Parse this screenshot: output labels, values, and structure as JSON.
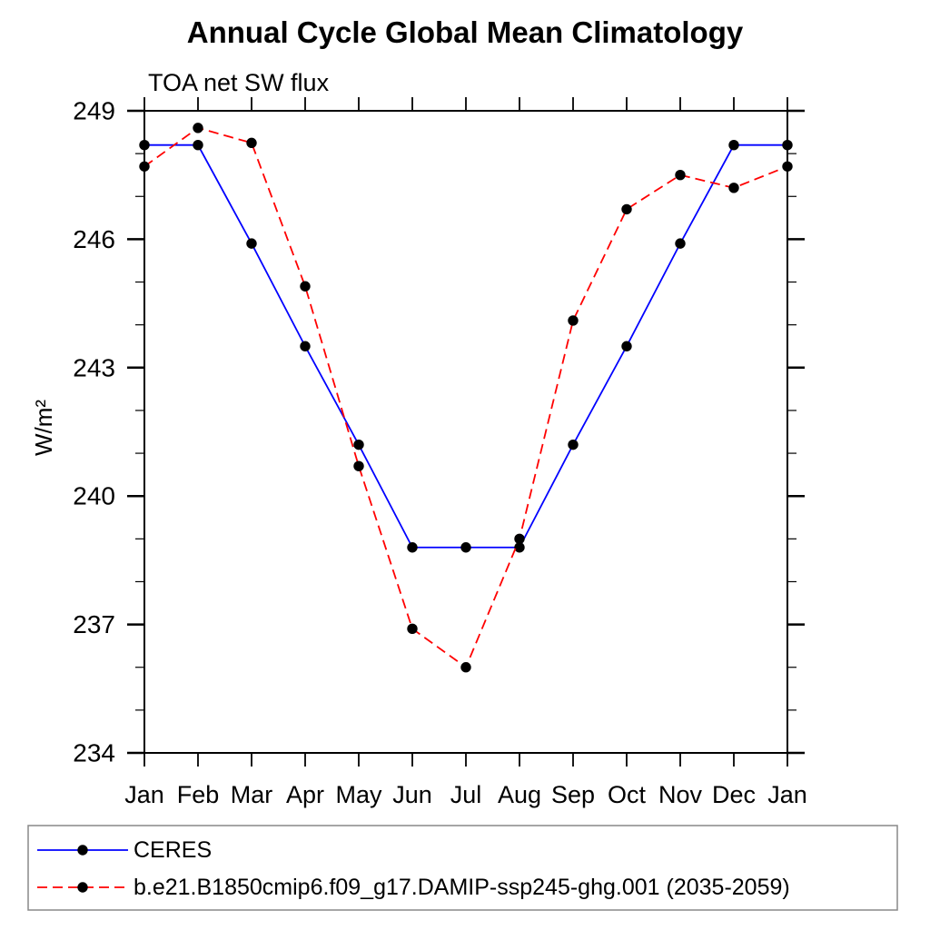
{
  "page": {
    "background": "#ffffff"
  },
  "chart_data": {
    "type": "line",
    "title": "Annual Cycle Global Mean Climatology",
    "subtitle": "TOA net SW flux",
    "xlabel": "",
    "ylabel": "W/m²",
    "categories": [
      "Jan",
      "Feb",
      "Mar",
      "Apr",
      "May",
      "Jun",
      "Jul",
      "Aug",
      "Sep",
      "Oct",
      "Nov",
      "Dec",
      "Jan"
    ],
    "ylim": [
      234,
      249
    ],
    "ytick_major": [
      249,
      246,
      243,
      240,
      237,
      234
    ],
    "ytick_major_step": 3,
    "ytick_minor_step": 1,
    "grid": false,
    "legend_position": "below-left",
    "frame_color": "#000000",
    "legend_border_color": "#888888",
    "marker_color": "#000000",
    "series": [
      {
        "name": "CERES",
        "color": "#0000ff",
        "line_style": "solid",
        "marker": "filled-circle",
        "marker_color": "#000000",
        "values": [
          248.2,
          248.2,
          245.9,
          243.5,
          241.2,
          238.8,
          238.8,
          238.8,
          241.2,
          243.5,
          245.9,
          248.2,
          248.2
        ]
      },
      {
        "name": "b.e21.B1850cmip6.f09_g17.DAMIP-ssp245-ghg.001 (2035-2059)",
        "color": "#ff0000",
        "line_style": "dashed",
        "marker": "filled-circle",
        "marker_color": "#000000",
        "values": [
          247.7,
          248.6,
          248.25,
          244.9,
          240.7,
          236.9,
          236.0,
          239.0,
          244.1,
          246.7,
          247.5,
          247.2,
          247.7
        ]
      }
    ]
  }
}
